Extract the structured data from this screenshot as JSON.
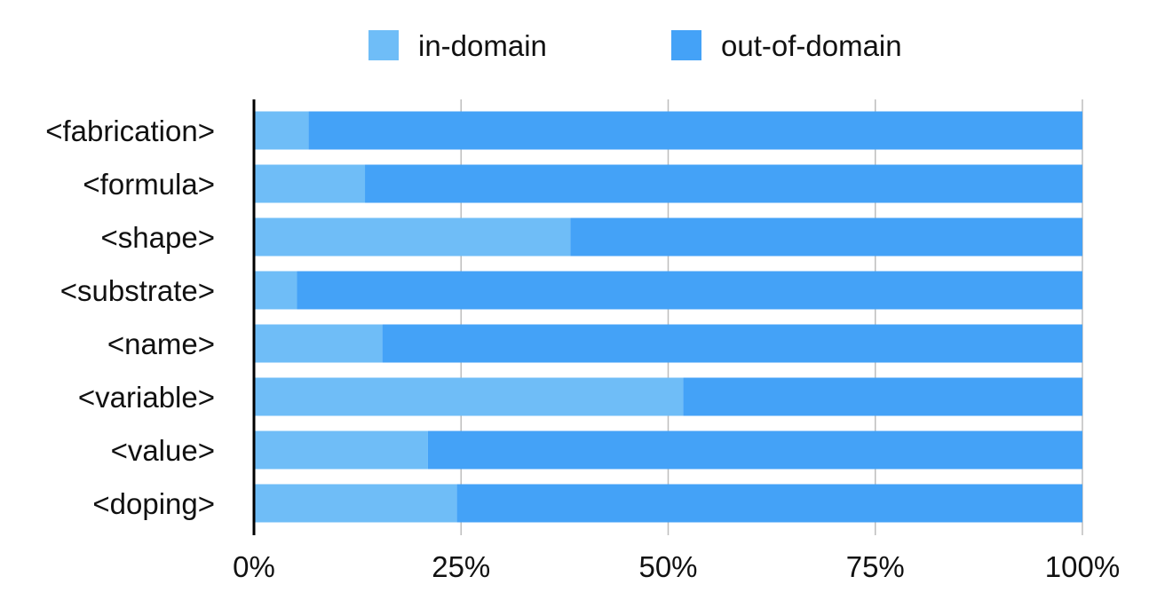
{
  "chart_data": {
    "type": "bar",
    "orientation": "horizontal",
    "stacked": true,
    "percent_stacked": true,
    "categories": [
      "<fabrication>",
      "<formula>",
      "<shape>",
      "<substrate>",
      "<name>",
      "<variable>",
      "<value>",
      "<doping>"
    ],
    "series": [
      {
        "name": "in-domain",
        "values": [
          6.6,
          13.4,
          38.2,
          5.2,
          15.5,
          51.8,
          21.0,
          24.5
        ],
        "color": "#6fbdf7"
      },
      {
        "name": "out-of-domain",
        "values": [
          93.4,
          86.6,
          61.8,
          94.8,
          84.5,
          48.2,
          79.0,
          75.5
        ],
        "color": "#44a2f7"
      }
    ],
    "xlim": [
      0,
      100
    ],
    "xticks": [
      "0%",
      "25%",
      "50%",
      "75%",
      "100%"
    ],
    "title": "",
    "xlabel": "",
    "ylabel": "",
    "grid": "vertical",
    "legend_position": "top"
  }
}
